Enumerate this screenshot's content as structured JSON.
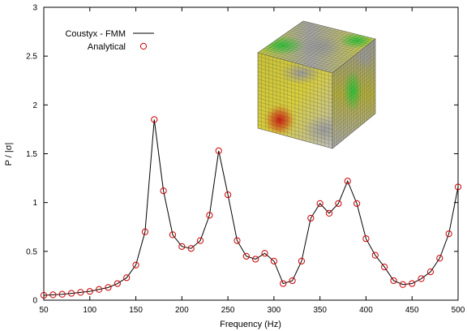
{
  "chart_data": {
    "type": "line",
    "title": "",
    "xlabel": "Frequency (Hz)",
    "ylabel": "P / |σ|",
    "xlim": [
      50,
      500
    ],
    "ylim": [
      0,
      3
    ],
    "xticks": [
      50,
      100,
      150,
      200,
      250,
      300,
      350,
      400,
      450,
      500
    ],
    "yticks": [
      0,
      0.5,
      1,
      1.5,
      2,
      2.5,
      3
    ],
    "ytick_labels": [
      "0",
      "0.5",
      "1",
      "1.5",
      "2",
      "2.5",
      "3"
    ],
    "grid": false,
    "legend_position": "top-left",
    "x": [
      50,
      60,
      70,
      80,
      90,
      100,
      110,
      120,
      130,
      140,
      150,
      160,
      170,
      180,
      190,
      200,
      210,
      220,
      230,
      240,
      250,
      260,
      270,
      280,
      290,
      300,
      310,
      320,
      330,
      340,
      350,
      360,
      370,
      380,
      390,
      400,
      410,
      420,
      430,
      440,
      450,
      460,
      470,
      480,
      490,
      500
    ],
    "series": [
      {
        "name": "Coustyx - FMM",
        "style": "line",
        "color": "#000000",
        "values": [
          0.05,
          0.055,
          0.06,
          0.07,
          0.08,
          0.09,
          0.11,
          0.13,
          0.17,
          0.23,
          0.36,
          0.7,
          1.85,
          1.12,
          0.67,
          0.55,
          0.53,
          0.61,
          0.87,
          1.53,
          1.08,
          0.61,
          0.45,
          0.42,
          0.48,
          0.4,
          0.17,
          0.2,
          0.4,
          0.84,
          0.99,
          0.89,
          0.99,
          1.22,
          0.99,
          0.63,
          0.46,
          0.34,
          0.2,
          0.16,
          0.17,
          0.22,
          0.29,
          0.43,
          0.68,
          1.16
        ]
      },
      {
        "name": "Analytical",
        "style": "markers",
        "color": "#cc0000",
        "values": [
          0.05,
          0.055,
          0.06,
          0.07,
          0.08,
          0.09,
          0.11,
          0.13,
          0.17,
          0.23,
          0.36,
          0.7,
          1.85,
          1.12,
          0.67,
          0.55,
          0.53,
          0.61,
          0.87,
          1.53,
          1.08,
          0.61,
          0.45,
          0.42,
          0.48,
          0.4,
          0.17,
          0.2,
          0.4,
          0.84,
          0.99,
          0.89,
          0.99,
          1.22,
          0.99,
          0.63,
          0.46,
          0.34,
          0.2,
          0.16,
          0.17,
          0.22,
          0.29,
          0.43,
          0.68,
          1.16
        ]
      }
    ],
    "inset_image": "pressure-colored-cube-mesh"
  }
}
